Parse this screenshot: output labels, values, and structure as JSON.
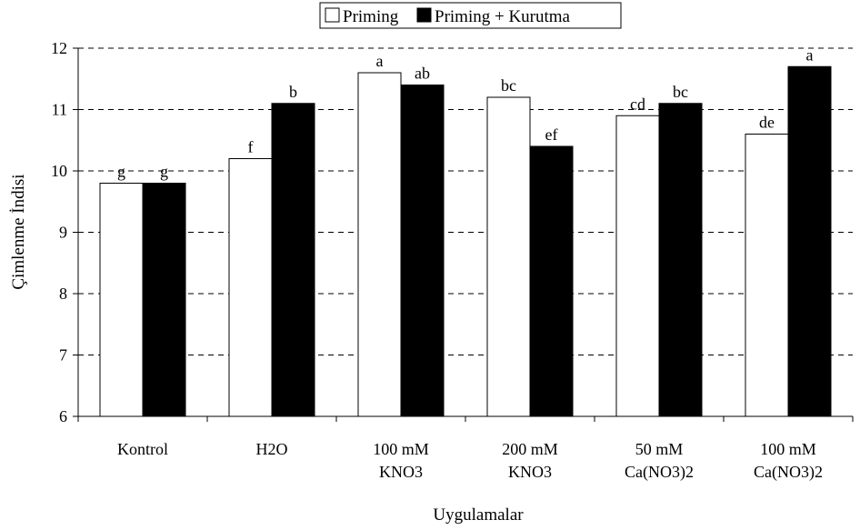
{
  "chart_data": {
    "type": "bar",
    "title": "",
    "xlabel": "Uygulamalar",
    "ylabel": "Çimlenme İndisi",
    "ylim": [
      6,
      12
    ],
    "yticks": [
      6,
      7,
      8,
      9,
      10,
      11,
      12
    ],
    "grid": "horizontal dashed",
    "legend_position": "top",
    "categories": [
      [
        "Kontrol"
      ],
      [
        "H2O"
      ],
      [
        "100 mM",
        "KNO3"
      ],
      [
        "200 mM",
        "KNO3"
      ],
      [
        "50 mM",
        "Ca(NO3)2"
      ],
      [
        "100 mM",
        "Ca(NO3)2"
      ]
    ],
    "series": [
      {
        "name": "Priming",
        "color": "#ffffff",
        "values": [
          9.8,
          10.2,
          11.6,
          11.2,
          10.9,
          10.6
        ],
        "labels": [
          "g",
          "f",
          "a",
          "bc",
          "cd",
          "de"
        ]
      },
      {
        "name": "Priming + Kurutma",
        "color": "#000000",
        "values": [
          9.8,
          11.1,
          11.4,
          10.4,
          11.1,
          11.7
        ],
        "labels": [
          "g",
          "b",
          "ab",
          "ef",
          "bc",
          "a"
        ]
      }
    ]
  }
}
